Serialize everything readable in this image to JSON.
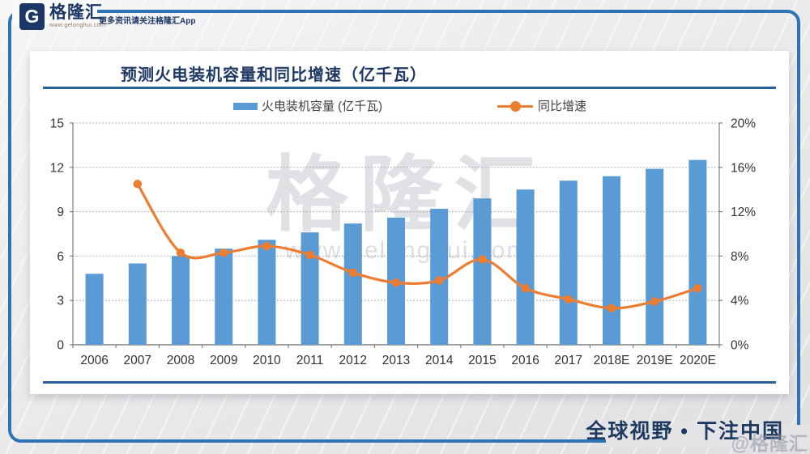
{
  "header": {
    "logo_symbol": "G",
    "logo_text": "格隆汇",
    "logo_url": "www.gelonghui.com",
    "tagline": "更多资讯请关注格隆汇App"
  },
  "watermark": {
    "brand": "格隆汇",
    "url": "www.gelonghui.com",
    "corner": "@格隆汇"
  },
  "footer": {
    "slogan": "全球视野 • 下注中国"
  },
  "chart_data": {
    "type": "bar+line",
    "title": "预测火电装机容量和同比增速（亿千瓦）",
    "categories": [
      "2006",
      "2007",
      "2008",
      "2009",
      "2010",
      "2011",
      "2012",
      "2013",
      "2014",
      "2015",
      "2016",
      "2017",
      "2018E",
      "2019E",
      "2020E"
    ],
    "series": [
      {
        "name": "火电装机容量 (亿千瓦)",
        "type": "bar",
        "axis": "left",
        "color": "#5B9BD5",
        "values": [
          4.8,
          5.5,
          6.0,
          6.5,
          7.1,
          7.6,
          8.2,
          8.6,
          9.2,
          9.9,
          10.5,
          11.1,
          11.4,
          11.9,
          12.5
        ]
      },
      {
        "name": "同比增速",
        "type": "line",
        "axis": "right",
        "color": "#ED7D31",
        "values": [
          null,
          14.5,
          8.3,
          8.3,
          8.9,
          8.1,
          6.5,
          5.6,
          5.8,
          7.7,
          5.1,
          4.1,
          3.3,
          3.9,
          5.1
        ]
      }
    ],
    "left_axis": {
      "min": 0,
      "max": 15,
      "ticks": [
        0,
        3,
        6,
        9,
        12,
        15
      ],
      "suffix": ""
    },
    "right_axis": {
      "min": 0,
      "max": 20,
      "ticks": [
        0,
        4,
        8,
        12,
        16,
        20
      ],
      "suffix": "%"
    },
    "legend_position": "top",
    "grid": "horizontal dotted"
  },
  "colors": {
    "bar": "#5B9BD5",
    "line": "#ED7D31",
    "navy": "#1F3864",
    "rule": "#2A6099",
    "frame": "#2E74B5",
    "axis_text": "#333333",
    "plot_border": "#808080"
  }
}
